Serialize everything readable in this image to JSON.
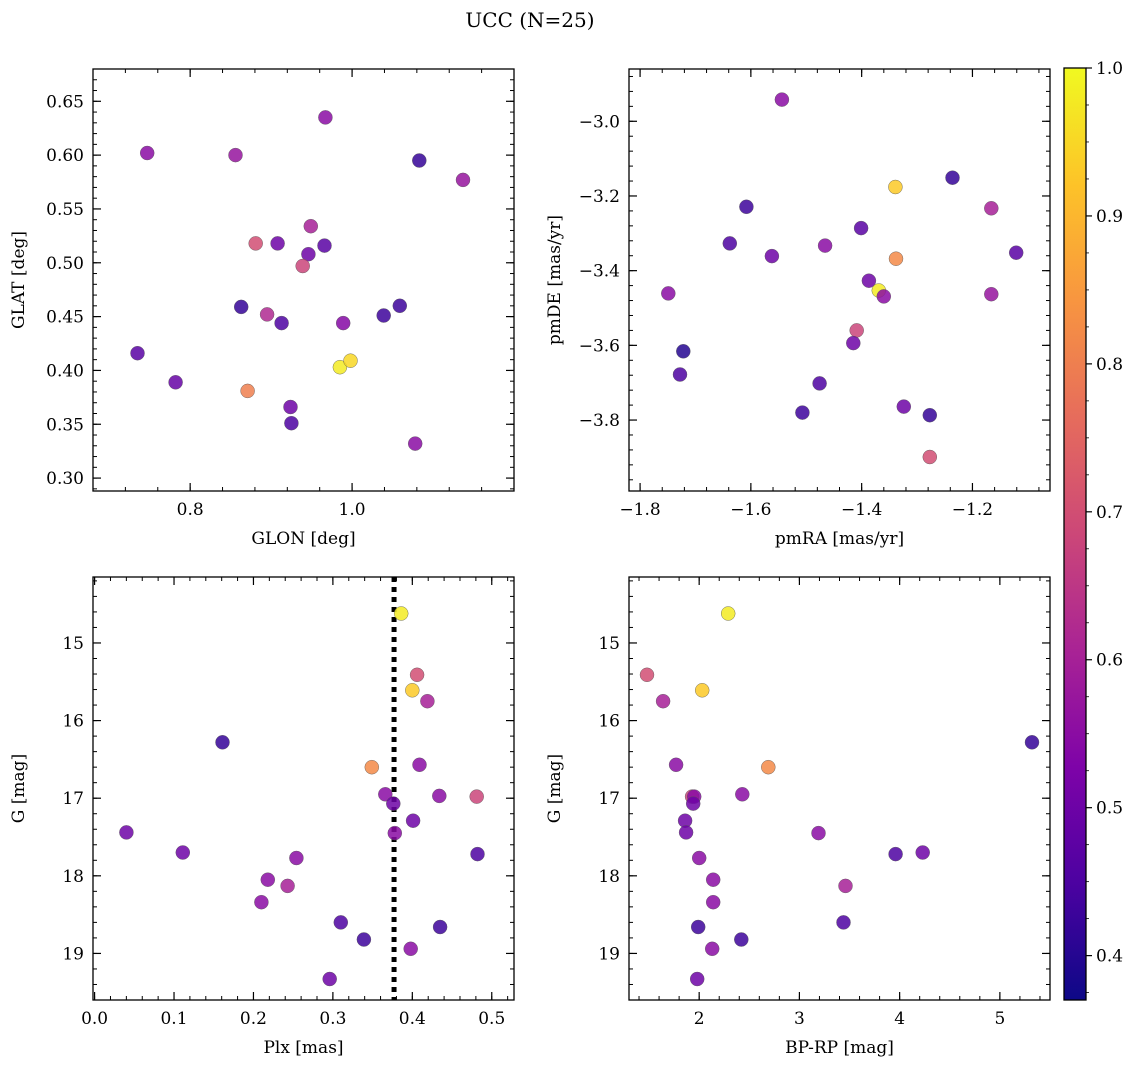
{
  "figure": {
    "title": "UCC (N=25)"
  },
  "colorbar": {
    "range": [
      0.37,
      1.0
    ],
    "ticks": [
      "0.4",
      "0.5",
      "0.6",
      "0.7",
      "0.8",
      "0.9",
      "1.0"
    ],
    "colormap": "plasma"
  },
  "chart_data": [
    {
      "type": "scatter",
      "id": "glon_glat",
      "xlabel": "GLON [deg]",
      "ylabel": "GLAT [deg]",
      "xlim": [
        0.68,
        1.2
      ],
      "ylim": [
        0.288,
        0.68
      ],
      "x_invert": false,
      "y_invert": false,
      "xticks": [
        0.8,
        1.0
      ],
      "xtick_labels": [
        "0.8",
        "1.0"
      ],
      "yticks": [
        0.3,
        0.35,
        0.4,
        0.45,
        0.5,
        0.55,
        0.6,
        0.65
      ],
      "ytick_labels": [
        "0.30",
        "0.35",
        "0.40",
        "0.45",
        "0.50",
        "0.55",
        "0.60",
        "0.65"
      ],
      "x": [
        0.747,
        0.856,
        0.967,
        1.083,
        1.137,
        0.949,
        0.881,
        0.908,
        0.946,
        0.966,
        0.939,
        0.863,
        0.895,
        0.913,
        0.989,
        1.039,
        1.059,
        0.735,
        0.782,
        0.871,
        0.985,
        0.998,
        0.924,
        0.925,
        1.078
      ],
      "y": [
        0.602,
        0.6,
        0.635,
        0.595,
        0.577,
        0.534,
        0.518,
        0.518,
        0.508,
        0.516,
        0.497,
        0.459,
        0.452,
        0.444,
        0.444,
        0.451,
        0.46,
        0.416,
        0.389,
        0.381,
        0.403,
        0.409,
        0.366,
        0.351,
        0.332
      ],
      "c": [
        0.55,
        0.57,
        0.55,
        0.42,
        0.57,
        0.6,
        0.7,
        0.5,
        0.5,
        0.47,
        0.68,
        0.42,
        0.62,
        0.45,
        0.54,
        0.43,
        0.43,
        0.47,
        0.49,
        0.8,
        0.98,
        0.95,
        0.5,
        0.45,
        0.55
      ]
    },
    {
      "type": "scatter",
      "id": "pmra_pmde",
      "xlabel": "pmRA [mas/yr]",
      "ylabel": "pmDE [mas/yr]",
      "xlim": [
        -1.82,
        -1.06
      ],
      "ylim": [
        -3.99,
        -2.86
      ],
      "x_invert": false,
      "y_invert": false,
      "xticks": [
        -1.8,
        -1.6,
        -1.4,
        -1.2
      ],
      "xtick_labels": [
        "−1.8",
        "−1.6",
        "−1.4",
        "−1.2"
      ],
      "yticks": [
        -3.8,
        -3.6,
        -3.4,
        -3.2,
        -3.0
      ],
      "ytick_labels": [
        "−3.8",
        "−3.6",
        "−3.4",
        "−3.2",
        "−3.0"
      ],
      "x": [
        -1.544,
        -1.339,
        -1.236,
        -1.166,
        -1.608,
        -1.638,
        -1.401,
        -1.466,
        -1.562,
        -1.121,
        -1.338,
        -1.387,
        -1.369,
        -1.36,
        -1.749,
        -1.166,
        -1.409,
        -1.415,
        -1.722,
        -1.728,
        -1.476,
        -1.507,
        -1.324,
        -1.277,
        -1.277
      ],
      "y": [
        -2.942,
        -3.176,
        -3.151,
        -3.233,
        -3.229,
        -3.327,
        -3.286,
        -3.333,
        -3.361,
        -3.352,
        -3.368,
        -3.427,
        -3.453,
        -3.469,
        -3.461,
        -3.463,
        -3.56,
        -3.594,
        -3.616,
        -3.678,
        -3.702,
        -3.78,
        -3.764,
        -3.787,
        -3.899
      ],
      "c": [
        0.55,
        0.93,
        0.42,
        0.6,
        0.43,
        0.45,
        0.47,
        0.55,
        0.5,
        0.47,
        0.82,
        0.5,
        0.98,
        0.55,
        0.55,
        0.57,
        0.68,
        0.5,
        0.4,
        0.45,
        0.45,
        0.43,
        0.5,
        0.42,
        0.7
      ]
    },
    {
      "type": "scatter",
      "id": "plx_g",
      "xlabel": "Plx [mas]",
      "ylabel": "G [mag]",
      "xlim": [
        -0.002,
        0.528
      ],
      "ylim": [
        14.15,
        19.6
      ],
      "x_invert": false,
      "y_invert": true,
      "xticks": [
        0.0,
        0.1,
        0.2,
        0.3,
        0.4,
        0.5
      ],
      "xtick_labels": [
        "0.0",
        "0.1",
        "0.2",
        "0.3",
        "0.4",
        "0.5"
      ],
      "yticks": [
        15,
        16,
        17,
        18,
        19
      ],
      "ytick_labels": [
        "15",
        "16",
        "17",
        "18",
        "19"
      ],
      "vline": 0.377,
      "x": [
        0.386,
        0.406,
        0.4,
        0.419,
        0.161,
        0.409,
        0.349,
        0.366,
        0.376,
        0.434,
        0.481,
        0.401,
        0.378,
        0.04,
        0.111,
        0.254,
        0.218,
        0.482,
        0.243,
        0.21,
        0.31,
        0.339,
        0.435,
        0.398,
        0.296
      ],
      "y": [
        14.62,
        15.41,
        15.61,
        15.75,
        16.28,
        16.57,
        16.6,
        16.95,
        17.07,
        16.97,
        16.98,
        17.29,
        17.45,
        17.44,
        17.7,
        17.77,
        18.05,
        17.72,
        18.13,
        18.34,
        18.6,
        18.82,
        18.66,
        18.94,
        19.33
      ],
      "c": [
        0.98,
        0.7,
        0.93,
        0.6,
        0.42,
        0.55,
        0.82,
        0.55,
        0.5,
        0.55,
        0.68,
        0.5,
        0.55,
        0.5,
        0.5,
        0.55,
        0.55,
        0.45,
        0.6,
        0.55,
        0.45,
        0.43,
        0.43,
        0.55,
        0.5
      ]
    },
    {
      "type": "scatter",
      "id": "bprp_g",
      "xlabel": "BP-RP [mag]",
      "ylabel": "G [mag]",
      "xlim": [
        1.3,
        5.5
      ],
      "ylim": [
        14.15,
        19.6
      ],
      "x_invert": false,
      "y_invert": true,
      "xticks": [
        2,
        3,
        4,
        5
      ],
      "xtick_labels": [
        "2",
        "3",
        "4",
        "5"
      ],
      "yticks": [
        15,
        16,
        17,
        18,
        19
      ],
      "ytick_labels": [
        "15",
        "16",
        "17",
        "18",
        "19"
      ],
      "x": [
        2.29,
        1.48,
        2.03,
        1.64,
        5.32,
        1.77,
        2.69,
        2.43,
        1.93,
        1.95,
        1.94,
        1.86,
        3.19,
        1.87,
        3.96,
        4.23,
        2.0,
        2.14,
        3.46,
        2.14,
        3.44,
        2.42,
        1.99,
        2.13,
        1.98
      ],
      "y": [
        14.62,
        15.41,
        15.61,
        15.75,
        16.28,
        16.57,
        16.6,
        16.95,
        16.98,
        16.98,
        17.07,
        17.29,
        17.45,
        17.44,
        17.72,
        17.7,
        17.77,
        18.05,
        18.13,
        18.34,
        18.6,
        18.82,
        18.66,
        18.94,
        19.33
      ],
      "c": [
        0.98,
        0.7,
        0.93,
        0.6,
        0.42,
        0.55,
        0.82,
        0.55,
        0.68,
        0.55,
        0.5,
        0.5,
        0.55,
        0.5,
        0.45,
        0.5,
        0.55,
        0.55,
        0.6,
        0.55,
        0.45,
        0.43,
        0.43,
        0.55,
        0.5
      ]
    }
  ]
}
